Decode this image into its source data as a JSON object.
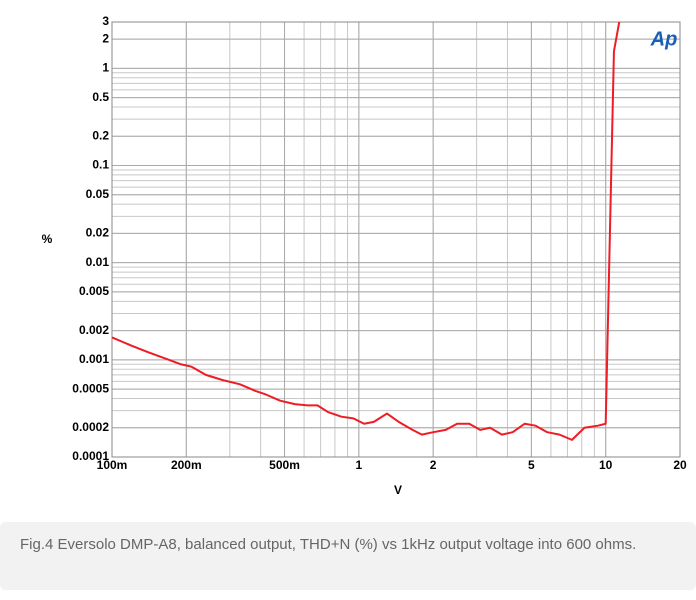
{
  "chart_data": {
    "type": "line",
    "logo": "Ap",
    "ylabel": "%",
    "xlabel": "V",
    "xscale": "log",
    "yscale": "log",
    "grid": true,
    "xlim": [
      0.1,
      20
    ],
    "ylim": [
      0.0001,
      3
    ],
    "xticks": [
      {
        "value": 0.1,
        "label": "100m"
      },
      {
        "value": 0.2,
        "label": "200m"
      },
      {
        "value": 0.5,
        "label": "500m"
      },
      1,
      2,
      5,
      10,
      20
    ],
    "yticks": [
      3,
      2,
      1,
      0.5,
      0.2,
      0.1,
      0.05,
      0.02,
      0.01,
      0.005,
      0.002,
      0.001,
      0.0005,
      0.0002,
      0.0001
    ],
    "series": [
      {
        "color": "#ee1c25",
        "x": [
          0.1,
          0.12,
          0.14,
          0.17,
          0.19,
          0.21,
          0.24,
          0.28,
          0.33,
          0.38,
          0.42,
          0.48,
          0.55,
          0.62,
          0.68,
          0.75,
          0.85,
          0.95,
          1.05,
          1.15,
          1.3,
          1.45,
          1.65,
          1.8,
          2.0,
          2.25,
          2.5,
          2.8,
          3.1,
          3.4,
          3.8,
          4.2,
          4.7,
          5.2,
          5.8,
          6.5,
          7.3,
          8.2,
          9.3,
          10.0,
          10.8,
          11.4
        ],
        "values": [
          0.0017,
          0.0014,
          0.0012,
          0.001,
          0.0009,
          0.00085,
          0.0007,
          0.00062,
          0.00056,
          0.00048,
          0.00044,
          0.00038,
          0.00035,
          0.00034,
          0.00034,
          0.00029,
          0.00026,
          0.00025,
          0.00022,
          0.00023,
          0.00028,
          0.00023,
          0.00019,
          0.00017,
          0.00018,
          0.00019,
          0.00022,
          0.00022,
          0.00019,
          0.0002,
          0.00017,
          0.00018,
          0.00022,
          0.00021,
          0.00018,
          0.00017,
          0.00015,
          0.0002,
          0.00021,
          0.00022,
          1.5,
          3.2
        ]
      }
    ]
  },
  "caption": "Fig.4 Eversolo DMP-A8, balanced output, THD+N (%) vs 1kHz output voltage into 600 ohms."
}
